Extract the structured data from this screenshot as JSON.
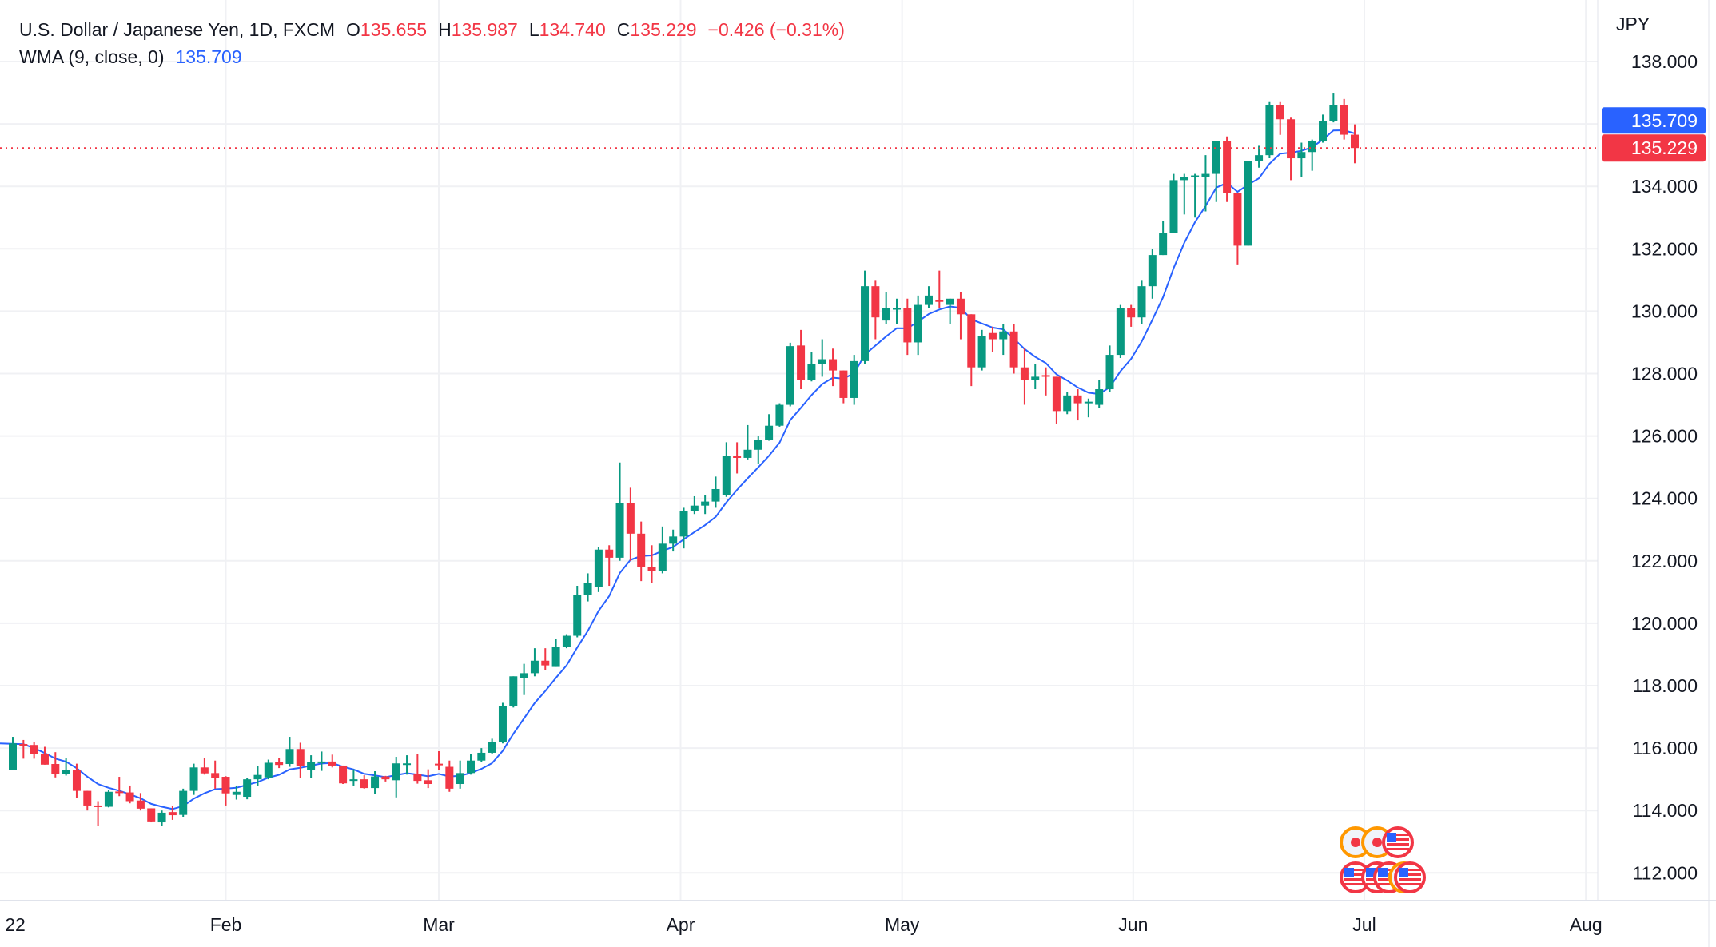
{
  "legend": {
    "symbol": "U.S. Dollar / Japanese Yen, 1D, FXCM",
    "o_label": "O",
    "o_value": "135.655",
    "h_label": "H",
    "h_value": "135.987",
    "l_label": "L",
    "l_value": "134.740",
    "c_label": "C",
    "c_value": "135.229",
    "change": "−0.426 (−0.31%)",
    "indicator": "WMA (9, close, 0)",
    "indicator_value": "135.709"
  },
  "colors": {
    "up": "#089981",
    "down": "#F23645",
    "wma": "#2962FF",
    "grid": "#F0F1F4",
    "text": "#131722"
  },
  "chart_data": {
    "type": "candlestick",
    "title": "U.S. Dollar / Japanese Yen, 1D, FXCM",
    "currency_label": "JPY",
    "ylim": [
      111.4,
      139.4
    ],
    "y_ticks": [
      "112.000",
      "114.000",
      "116.000",
      "118.000",
      "120.000",
      "122.000",
      "124.000",
      "126.000",
      "128.000",
      "130.000",
      "132.000",
      "134.000",
      "138.000"
    ],
    "y_tick_values": [
      112,
      114,
      116,
      118,
      120,
      122,
      124,
      126,
      128,
      130,
      132,
      134,
      138
    ],
    "x_ticks": [
      {
        "label": "22",
        "index": 0
      },
      {
        "label": "Feb",
        "index": 20
      },
      {
        "label": "Mar",
        "index": 40
      },
      {
        "label": "Apr",
        "index": 62.7
      },
      {
        "label": "May",
        "index": 83.5
      },
      {
        "label": "Jun",
        "index": 105.2
      },
      {
        "label": "Jul",
        "index": 126.9
      },
      {
        "label": "Aug",
        "index": 147.7
      }
    ],
    "last_price": {
      "value": 135.229,
      "label": "135.229"
    },
    "wma_last": {
      "value": 135.709,
      "label": "135.709"
    },
    "wma_period": 9,
    "ohlc": [
      [
        115.3,
        116.36,
        115.3,
        116.15
      ],
      [
        116.13,
        116.26,
        115.66,
        116.1
      ],
      [
        116.1,
        116.2,
        115.66,
        115.8
      ],
      [
        115.8,
        116.04,
        115.47,
        115.47
      ],
      [
        115.49,
        115.87,
        115.06,
        115.16
      ],
      [
        115.16,
        115.68,
        115.12,
        115.3
      ],
      [
        115.3,
        115.5,
        114.4,
        114.63
      ],
      [
        114.63,
        114.63,
        114.0,
        114.16
      ],
      [
        114.16,
        114.3,
        113.5,
        114.14
      ],
      [
        114.12,
        114.66,
        114.1,
        114.6
      ],
      [
        114.61,
        115.08,
        114.46,
        114.58
      ],
      [
        114.58,
        114.8,
        114.23,
        114.3
      ],
      [
        114.32,
        114.56,
        114.0,
        114.06
      ],
      [
        114.07,
        114.07,
        113.62,
        113.65
      ],
      [
        113.62,
        114.0,
        113.5,
        113.93
      ],
      [
        113.95,
        114.15,
        113.7,
        113.85
      ],
      [
        113.86,
        114.7,
        113.8,
        114.63
      ],
      [
        114.63,
        115.5,
        114.5,
        115.38
      ],
      [
        115.38,
        115.68,
        115.15,
        115.19
      ],
      [
        115.2,
        115.6,
        114.7,
        115.05
      ],
      [
        115.08,
        115.1,
        114.16,
        114.55
      ],
      [
        114.5,
        114.8,
        114.35,
        114.6
      ],
      [
        114.44,
        115.05,
        114.36,
        115.0
      ],
      [
        115.0,
        115.43,
        114.8,
        115.14
      ],
      [
        115.06,
        115.63,
        115.0,
        115.53
      ],
      [
        115.55,
        115.68,
        115.36,
        115.46
      ],
      [
        115.49,
        116.36,
        115.4,
        115.97
      ],
      [
        115.97,
        116.17,
        115.03,
        115.42
      ],
      [
        115.29,
        115.77,
        115.03,
        115.55
      ],
      [
        115.53,
        115.89,
        115.27,
        115.57
      ],
      [
        115.57,
        115.79,
        115.38,
        115.44
      ],
      [
        115.44,
        115.44,
        114.85,
        114.87
      ],
      [
        114.95,
        115.32,
        114.8,
        115.0
      ],
      [
        115.0,
        115.13,
        114.7,
        114.72
      ],
      [
        114.72,
        115.26,
        114.52,
        115.09
      ],
      [
        115.09,
        115.11,
        114.93,
        115.0
      ],
      [
        114.97,
        115.72,
        114.42,
        115.51
      ],
      [
        115.5,
        115.77,
        115.15,
        115.51
      ],
      [
        115.17,
        115.8,
        114.86,
        114.95
      ],
      [
        114.97,
        115.32,
        114.72,
        114.85
      ],
      [
        115.5,
        115.9,
        115.3,
        115.45
      ],
      [
        115.4,
        115.6,
        114.6,
        114.7
      ],
      [
        114.85,
        115.6,
        114.7,
        115.2
      ],
      [
        115.2,
        115.8,
        115.15,
        115.6
      ],
      [
        115.6,
        116.0,
        115.55,
        115.85
      ],
      [
        115.85,
        116.3,
        115.8,
        116.2
      ],
      [
        116.2,
        117.45,
        116.15,
        117.35
      ],
      [
        117.35,
        118.3,
        117.3,
        118.3
      ],
      [
        118.25,
        118.7,
        117.7,
        118.4
      ],
      [
        118.4,
        119.2,
        118.3,
        118.8
      ],
      [
        118.8,
        119.2,
        118.5,
        118.65
      ],
      [
        118.6,
        119.5,
        118.6,
        119.25
      ],
      [
        119.25,
        119.65,
        119.2,
        119.6
      ],
      [
        119.6,
        121.2,
        119.55,
        120.9
      ],
      [
        120.9,
        121.6,
        120.7,
        121.3
      ],
      [
        121.15,
        122.45,
        121.0,
        122.36
      ],
      [
        122.36,
        122.5,
        121.2,
        122.1
      ],
      [
        122.1,
        125.15,
        122.0,
        123.85
      ],
      [
        123.85,
        124.34,
        122.0,
        122.87
      ],
      [
        122.87,
        123.26,
        121.35,
        121.8
      ],
      [
        121.8,
        122.5,
        121.3,
        121.67
      ],
      [
        121.67,
        123.1,
        121.6,
        122.55
      ],
      [
        122.55,
        123.0,
        122.3,
        122.78
      ],
      [
        122.78,
        123.7,
        122.4,
        123.6
      ],
      [
        123.6,
        124.07,
        123.5,
        123.77
      ],
      [
        123.77,
        124.1,
        123.5,
        123.9
      ],
      [
        123.9,
        124.7,
        123.7,
        124.3
      ],
      [
        124.1,
        125.8,
        124.05,
        125.35
      ],
      [
        125.35,
        125.8,
        124.8,
        125.3
      ],
      [
        125.3,
        126.35,
        125.25,
        125.56
      ],
      [
        125.56,
        126.0,
        125.1,
        125.87
      ],
      [
        125.87,
        126.7,
        125.85,
        126.33
      ],
      [
        126.33,
        127.05,
        126.3,
        127.0
      ],
      [
        127.0,
        128.99,
        126.95,
        128.88
      ],
      [
        128.9,
        129.4,
        127.5,
        127.8
      ],
      [
        127.8,
        128.7,
        127.75,
        128.3
      ],
      [
        128.3,
        129.1,
        127.9,
        128.46
      ],
      [
        128.46,
        128.8,
        127.6,
        128.1
      ],
      [
        128.1,
        128.1,
        127.05,
        127.22
      ],
      [
        127.22,
        128.6,
        127.0,
        128.4
      ],
      [
        128.4,
        131.3,
        128.3,
        130.8
      ],
      [
        130.8,
        131.0,
        129.1,
        129.8
      ],
      [
        129.7,
        130.6,
        129.6,
        130.1
      ],
      [
        130.05,
        130.4,
        129.6,
        130.1
      ],
      [
        130.1,
        130.4,
        128.6,
        129.0
      ],
      [
        129.0,
        130.5,
        128.6,
        130.2
      ],
      [
        130.2,
        130.8,
        130.1,
        130.5
      ],
      [
        130.35,
        131.3,
        130.1,
        130.3
      ],
      [
        130.2,
        130.4,
        129.6,
        130.4
      ],
      [
        130.4,
        130.6,
        129.1,
        129.9
      ],
      [
        129.9,
        129.9,
        127.6,
        128.2
      ],
      [
        128.2,
        129.4,
        128.1,
        129.2
      ],
      [
        129.3,
        129.5,
        128.7,
        129.1
      ],
      [
        129.1,
        129.6,
        128.6,
        129.35
      ],
      [
        129.35,
        129.6,
        128.0,
        128.2
      ],
      [
        128.2,
        128.8,
        127.0,
        127.8
      ],
      [
        127.8,
        128.3,
        127.5,
        127.9
      ],
      [
        127.95,
        128.2,
        127.3,
        127.9
      ],
      [
        127.9,
        127.9,
        126.4,
        126.8
      ],
      [
        126.8,
        127.4,
        126.7,
        127.3
      ],
      [
        127.3,
        127.5,
        126.5,
        127.05
      ],
      [
        127.05,
        127.2,
        126.6,
        127.1
      ],
      [
        127.0,
        127.8,
        126.9,
        127.5
      ],
      [
        127.5,
        128.9,
        127.4,
        128.6
      ],
      [
        128.6,
        130.2,
        128.5,
        130.1
      ],
      [
        130.1,
        130.2,
        129.5,
        129.8
      ],
      [
        129.8,
        131.0,
        129.6,
        130.8
      ],
      [
        130.8,
        132.0,
        130.4,
        131.8
      ],
      [
        131.8,
        132.9,
        131.8,
        132.5
      ],
      [
        132.5,
        134.4,
        132.5,
        134.2
      ],
      [
        134.2,
        134.4,
        133.1,
        134.3
      ],
      [
        134.3,
        134.4,
        133.0,
        134.35
      ],
      [
        134.3,
        135.0,
        133.2,
        134.4
      ],
      [
        134.4,
        135.45,
        133.5,
        135.45
      ],
      [
        135.45,
        135.6,
        133.5,
        133.8
      ],
      [
        133.8,
        133.8,
        131.5,
        132.1
      ],
      [
        132.1,
        134.8,
        132.1,
        134.8
      ],
      [
        134.8,
        135.3,
        134.6,
        135.0
      ],
      [
        135.0,
        136.7,
        134.9,
        136.6
      ],
      [
        136.6,
        136.7,
        135.65,
        136.15
      ],
      [
        136.15,
        136.2,
        134.2,
        134.9
      ],
      [
        134.9,
        135.4,
        134.3,
        135.1
      ],
      [
        135.1,
        135.5,
        134.5,
        135.45
      ],
      [
        135.45,
        136.3,
        135.4,
        136.1
      ],
      [
        136.1,
        137.0,
        136.05,
        136.6
      ],
      [
        136.6,
        136.8,
        135.5,
        135.655
      ],
      [
        135.655,
        135.987,
        134.74,
        135.229
      ]
    ],
    "event_markers": [
      {
        "type": "japan-flag",
        "row": 1
      },
      {
        "type": "japan-flag",
        "row": 1
      },
      {
        "type": "us-flag",
        "row": 1
      },
      {
        "type": "us-flag",
        "row": 2
      },
      {
        "type": "us-flag",
        "row": 2
      },
      {
        "type": "us-flag",
        "row": 2
      },
      {
        "type": "japan-flag",
        "row": 2
      },
      {
        "type": "us-flag",
        "row": 2
      }
    ]
  }
}
